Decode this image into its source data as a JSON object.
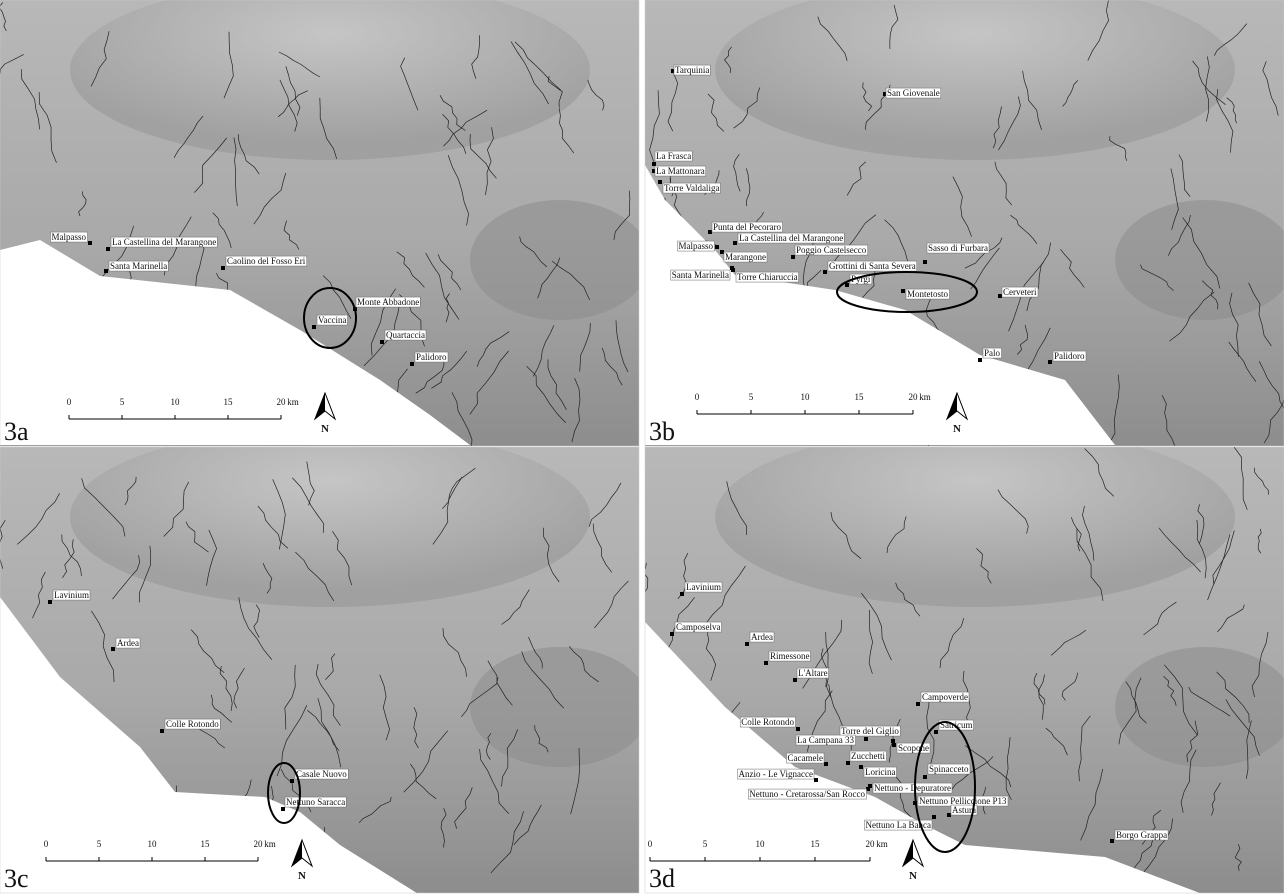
{
  "panels": [
    {
      "label": "3a",
      "sites": [
        "Malpasso",
        "La Castellina del Marangone",
        "Santa Marinella",
        "Caolino del Fosso Eri",
        "Monte Abbadone",
        "Vaccina",
        "Quartaccia",
        "Palidoro"
      ],
      "scale": {
        "ticks": [
          0,
          5,
          10,
          15,
          20
        ],
        "unit": "km"
      },
      "north": "N"
    },
    {
      "label": "3b",
      "sites": [
        "Tarquinia",
        "San Giovenale",
        "La Frasca",
        "La Mattonara",
        "Torre Valdaliga",
        "Punta del Pecoraro",
        "Malpasso",
        "La Castellina del Marangone",
        "Poggio Castelsecco",
        "Marangone",
        "Santa Marinella",
        "Torre Chiaruccia",
        "Grottini di Santa Severa",
        "Sasso di Furbara",
        "Pyrgi",
        "Montetosto",
        "Cerveteri",
        "Palo",
        "Palidoro"
      ],
      "scale": {
        "ticks": [
          0,
          5,
          10,
          15,
          20
        ],
        "unit": "km"
      },
      "north": "N"
    },
    {
      "label": "3c",
      "sites": [
        "Lavinium",
        "Ardea",
        "Colle Rotondo",
        "Casale Nuovo",
        "Nettuno Saracca"
      ],
      "scale": {
        "ticks": [
          0,
          5,
          10,
          15,
          20
        ],
        "unit": "km"
      },
      "north": "N"
    },
    {
      "label": "3d",
      "sites": [
        "Lavinium",
        "Camposelva",
        "Ardea",
        "Rimessone",
        "L'Altare",
        "Campoverde",
        "Colle Rotondo",
        "Torre del Giglio",
        "Satricum",
        "La Campana 33",
        "Scopone",
        "Cacamele",
        "Zucchetti",
        "Loricina",
        "Spinacceto",
        "Anzio - Le Vignacce",
        "Nettuno - Depuratore",
        "Nettuno - Cretarossa/San Rocco",
        "Nettuno Pelliccione P13",
        "Astura",
        "Nettuno La Banca",
        "Borgo Grappa"
      ],
      "scale": {
        "ticks": [
          0,
          5,
          10,
          15,
          20
        ],
        "unit": "km"
      },
      "north": "N"
    }
  ]
}
